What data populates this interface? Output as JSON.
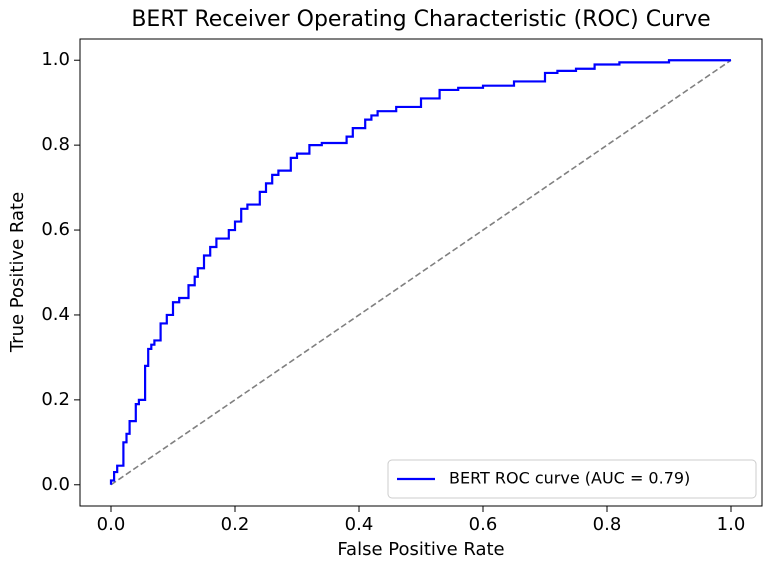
{
  "chart_data": {
    "type": "line",
    "title": "BERT Receiver Operating Characteristic (ROC) Curve",
    "xlabel": "False Positive Rate",
    "ylabel": "True Positive Rate",
    "xlim": [
      -0.05,
      1.05
    ],
    "ylim": [
      -0.05,
      1.05
    ],
    "xticks": [
      {
        "value": 0,
        "label": "0.0"
      },
      0.2,
      0.4,
      0.6,
      0.8,
      {
        "value": 1,
        "label": "1.0"
      }
    ],
    "yticks": [
      {
        "value": 0,
        "label": "0.0"
      },
      0.2,
      0.4,
      0.6,
      0.8,
      {
        "value": 1,
        "label": "1.0"
      }
    ],
    "grid": false,
    "legend": "lower right",
    "series": [
      {
        "name": "BERT ROC curve (AUC = 0.79)",
        "color": "#0000ff",
        "linestyle": "solid",
        "x": [
          0,
          0,
          0.005,
          0.005,
          0.01,
          0.01,
          0.02,
          0.02,
          0.025,
          0.025,
          0.03,
          0.03,
          0.04,
          0.04,
          0.045,
          0.045,
          0.055,
          0.055,
          0.06,
          0.06,
          0.065,
          0.065,
          0.07,
          0.07,
          0.08,
          0.08,
          0.09,
          0.09,
          0.1,
          0.1,
          0.11,
          0.11,
          0.125,
          0.125,
          0.135,
          0.135,
          0.14,
          0.14,
          0.15,
          0.15,
          0.16,
          0.16,
          0.17,
          0.17,
          0.19,
          0.19,
          0.2,
          0.2,
          0.21,
          0.21,
          0.22,
          0.22,
          0.24,
          0.24,
          0.25,
          0.25,
          0.26,
          0.26,
          0.27,
          0.27,
          0.29,
          0.29,
          0.3,
          0.3,
          0.32,
          0.32,
          0.34,
          0.34,
          0.38,
          0.38,
          0.39,
          0.39,
          0.41,
          0.41,
          0.42,
          0.42,
          0.43,
          0.43,
          0.46,
          0.46,
          0.5,
          0.5,
          0.53,
          0.53,
          0.56,
          0.56,
          0.6,
          0.6,
          0.65,
          0.65,
          0.7,
          0.7,
          0.72,
          0.72,
          0.75,
          0.75,
          0.78,
          0.78,
          0.82,
          0.82,
          0.9,
          0.9,
          1
        ],
        "y": [
          0,
          0.01,
          0.01,
          0.03,
          0.03,
          0.045,
          0.045,
          0.1,
          0.1,
          0.12,
          0.12,
          0.15,
          0.15,
          0.19,
          0.19,
          0.2,
          0.2,
          0.28,
          0.28,
          0.32,
          0.32,
          0.33,
          0.33,
          0.34,
          0.34,
          0.38,
          0.38,
          0.4,
          0.4,
          0.43,
          0.43,
          0.44,
          0.44,
          0.47,
          0.47,
          0.49,
          0.49,
          0.51,
          0.51,
          0.54,
          0.54,
          0.56,
          0.56,
          0.58,
          0.58,
          0.6,
          0.6,
          0.62,
          0.62,
          0.65,
          0.65,
          0.66,
          0.66,
          0.69,
          0.69,
          0.71,
          0.71,
          0.73,
          0.73,
          0.74,
          0.74,
          0.77,
          0.77,
          0.78,
          0.78,
          0.8,
          0.8,
          0.805,
          0.805,
          0.82,
          0.82,
          0.84,
          0.84,
          0.86,
          0.86,
          0.87,
          0.87,
          0.88,
          0.88,
          0.89,
          0.89,
          0.91,
          0.91,
          0.93,
          0.93,
          0.935,
          0.935,
          0.94,
          0.94,
          0.95,
          0.95,
          0.97,
          0.97,
          0.975,
          0.975,
          0.98,
          0.98,
          0.99,
          0.99,
          0.995,
          0.995,
          1,
          1
        ]
      },
      {
        "color": "#808080",
        "linestyle": "dashed",
        "x": [
          0,
          1
        ],
        "y": [
          0,
          1
        ]
      }
    ]
  }
}
